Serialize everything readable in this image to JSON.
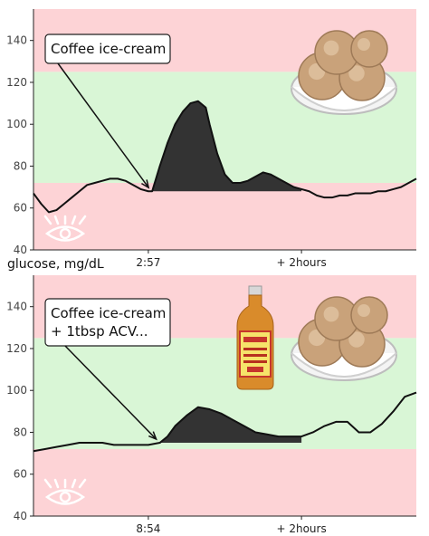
{
  "ylabel": "glucose, mg/dL",
  "colors": {
    "high_zone": "#fdd3d6",
    "normal_zone": "#d9f6d6",
    "low_zone": "#fdd3d6",
    "line": "#111111",
    "fill": "#333333",
    "axis_text": "#444444"
  },
  "chart_data": [
    {
      "type": "area",
      "annotation": "Coffee ice-cream",
      "xticks": [
        {
          "t": 0.3,
          "label": "2:57"
        },
        {
          "t": 0.7,
          "label": "+ 2hours"
        }
      ],
      "ylim": [
        40,
        155
      ],
      "yticks": [
        40,
        60,
        80,
        100,
        120,
        140
      ],
      "zones": [
        {
          "name": "high",
          "from": 125,
          "to": 155
        },
        {
          "name": "normal",
          "from": 72,
          "to": 125
        },
        {
          "name": "low",
          "from": 40,
          "to": 72
        }
      ],
      "series": [
        {
          "x": [
            0,
            0.02,
            0.04,
            0.06,
            0.08,
            0.1,
            0.12,
            0.14,
            0.16,
            0.18,
            0.2,
            0.22,
            0.24,
            0.26,
            0.28,
            0.3,
            0.31,
            0.33,
            0.35,
            0.37,
            0.39,
            0.41,
            0.43,
            0.45,
            0.46,
            0.48,
            0.5,
            0.52,
            0.54,
            0.56,
            0.58,
            0.6,
            0.62,
            0.64,
            0.66,
            0.68,
            0.7,
            0.72,
            0.74,
            0.76,
            0.78,
            0.8,
            0.82,
            0.84,
            0.86,
            0.88,
            0.9,
            0.92,
            0.94,
            0.96,
            0.98,
            1.0
          ],
          "y": [
            67,
            62,
            58,
            59,
            62,
            65,
            68,
            71,
            72,
            73,
            74,
            74,
            73,
            71,
            69,
            68,
            68,
            80,
            91,
            100,
            106,
            110,
            111,
            108,
            100,
            86,
            76,
            72,
            72,
            73,
            75,
            77,
            76,
            74,
            72,
            70,
            69,
            68,
            66,
            65,
            65,
            66,
            66,
            67,
            67,
            67,
            68,
            68,
            69,
            70,
            72,
            74
          ]
        }
      ],
      "highlight_range": [
        0.31,
        0.7
      ]
    },
    {
      "type": "area",
      "annotation": "Coffee ice-cream\n+ 1tbsp ACV...",
      "xticks": [
        {
          "t": 0.3,
          "label": "8:54"
        },
        {
          "t": 0.7,
          "label": "+ 2hours"
        }
      ],
      "ylim": [
        40,
        155
      ],
      "yticks": [
        40,
        60,
        80,
        100,
        120,
        140
      ],
      "zones": [
        {
          "name": "high",
          "from": 125,
          "to": 155
        },
        {
          "name": "normal",
          "from": 72,
          "to": 125
        },
        {
          "name": "low",
          "from": 40,
          "to": 72
        }
      ],
      "series": [
        {
          "x": [
            0,
            0.03,
            0.06,
            0.09,
            0.12,
            0.15,
            0.18,
            0.21,
            0.24,
            0.27,
            0.3,
            0.33,
            0.35,
            0.37,
            0.4,
            0.43,
            0.46,
            0.49,
            0.52,
            0.55,
            0.58,
            0.61,
            0.64,
            0.67,
            0.7,
            0.73,
            0.76,
            0.79,
            0.82,
            0.85,
            0.88,
            0.91,
            0.94,
            0.97,
            1.0
          ],
          "y": [
            71,
            72,
            73,
            74,
            75,
            75,
            75,
            74,
            74,
            74,
            74,
            75,
            78,
            83,
            88,
            92,
            91,
            89,
            86,
            83,
            80,
            79,
            78,
            78,
            78,
            80,
            83,
            85,
            85,
            80,
            80,
            84,
            90,
            97,
            99
          ]
        }
      ],
      "highlight_range": [
        0.33,
        0.7
      ]
    }
  ]
}
